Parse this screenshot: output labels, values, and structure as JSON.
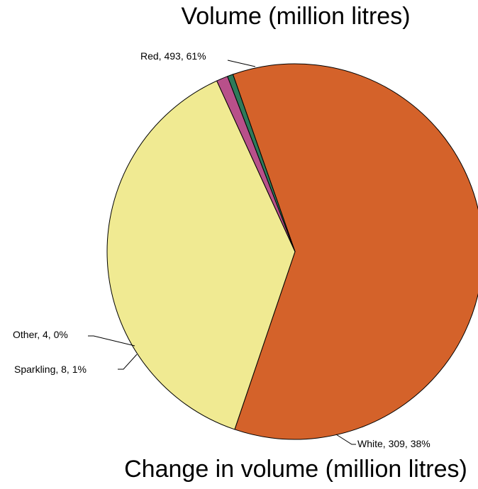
{
  "chart_data": [
    {
      "type": "pie",
      "title": "Volume (million litres)",
      "slices": [
        {
          "name": "Red",
          "value": 493,
          "percent": "61%",
          "color": "#d4622a",
          "label": "Red, 493, 61%"
        },
        {
          "name": "White",
          "value": 309,
          "percent": "38%",
          "color": "#f0ea92",
          "label": "White, 309, 38%"
        },
        {
          "name": "Sparkling",
          "value": 8,
          "percent": "1%",
          "color": "#b8508a",
          "label": "Sparkling, 8, 1%"
        },
        {
          "name": "Other",
          "value": 4,
          "percent": "0%",
          "color": "#2e7a5a",
          "label": "Other, 4, 0%"
        }
      ]
    },
    {
      "type": "bar",
      "title": "Change in volume (million litres)"
    }
  ]
}
